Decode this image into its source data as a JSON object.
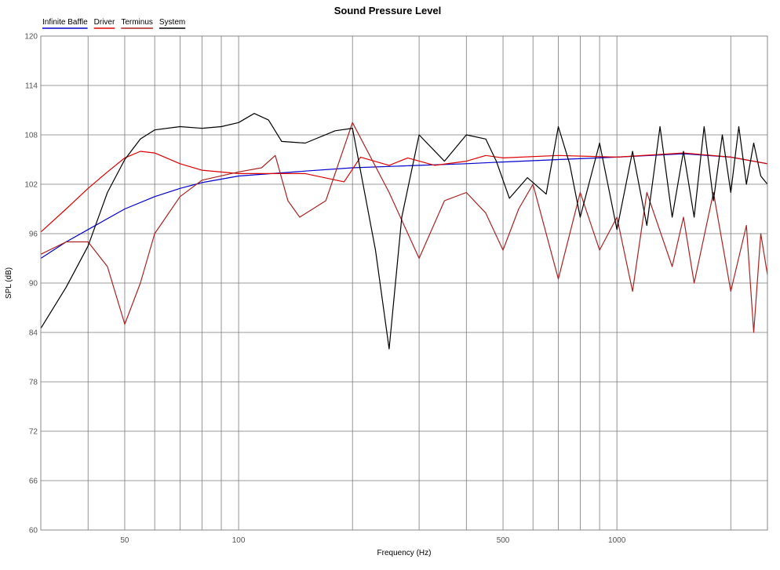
{
  "chart_data": {
    "type": "line",
    "title": "Sound Pressure Level",
    "xlabel": "Frequency (Hz)",
    "ylabel": "SPL (dB)",
    "x_scale": "log",
    "xlim": [
      30,
      2500
    ],
    "ylim": [
      60,
      120
    ],
    "y_ticks": [
      60,
      66,
      72,
      78,
      84,
      90,
      96,
      102,
      108,
      114,
      120
    ],
    "x_ticks_labeled": [
      {
        "value": 50,
        "label": "50"
      },
      {
        "value": 100,
        "label": "100"
      },
      {
        "value": 500,
        "label": "500"
      },
      {
        "value": 1000,
        "label": "1000"
      }
    ],
    "x_gridlines": [
      40,
      50,
      60,
      70,
      80,
      90,
      100,
      200,
      300,
      400,
      500,
      600,
      700,
      800,
      900,
      1000,
      2000
    ],
    "grid": true,
    "legend_position": "top-left",
    "series": [
      {
        "name": "Infinite Baffle",
        "color": "#0000cc",
        "points": [
          [
            30,
            93.0
          ],
          [
            35,
            95.0
          ],
          [
            40,
            96.5
          ],
          [
            50,
            99.0
          ],
          [
            60,
            100.5
          ],
          [
            70,
            101.5
          ],
          [
            80,
            102.2
          ],
          [
            100,
            103.0
          ],
          [
            150,
            103.6
          ],
          [
            200,
            104.0
          ],
          [
            300,
            104.3
          ],
          [
            400,
            104.5
          ],
          [
            500,
            104.7
          ],
          [
            700,
            105.0
          ],
          [
            1000,
            105.3
          ],
          [
            1500,
            105.7
          ],
          [
            2000,
            105.3
          ],
          [
            2500,
            104.5
          ]
        ]
      },
      {
        "name": "Driver",
        "color": "#dd0000",
        "points": [
          [
            30,
            96.2
          ],
          [
            35,
            99.0
          ],
          [
            40,
            101.5
          ],
          [
            45,
            103.5
          ],
          [
            50,
            105.2
          ],
          [
            55,
            106.0
          ],
          [
            60,
            105.8
          ],
          [
            70,
            104.5
          ],
          [
            80,
            103.7
          ],
          [
            100,
            103.3
          ],
          [
            150,
            103.3
          ],
          [
            190,
            102.3
          ],
          [
            210,
            105.3
          ],
          [
            250,
            104.3
          ],
          [
            280,
            105.2
          ],
          [
            330,
            104.3
          ],
          [
            400,
            104.8
          ],
          [
            450,
            105.5
          ],
          [
            500,
            105.2
          ],
          [
            700,
            105.5
          ],
          [
            1000,
            105.3
          ],
          [
            1500,
            105.8
          ],
          [
            2000,
            105.3
          ],
          [
            2500,
            104.5
          ]
        ]
      },
      {
        "name": "Terminus",
        "color": "#aa2222",
        "points": [
          [
            30,
            93.5
          ],
          [
            35,
            95.0
          ],
          [
            40,
            95.0
          ],
          [
            45,
            92.0
          ],
          [
            50,
            85.0
          ],
          [
            55,
            90.0
          ],
          [
            60,
            96.0
          ],
          [
            70,
            100.5
          ],
          [
            80,
            102.5
          ],
          [
            100,
            103.5
          ],
          [
            115,
            104.0
          ],
          [
            125,
            105.5
          ],
          [
            135,
            100.0
          ],
          [
            145,
            98.0
          ],
          [
            170,
            100.0
          ],
          [
            200,
            109.5
          ],
          [
            250,
            101.0
          ],
          [
            300,
            93.0
          ],
          [
            350,
            100.0
          ],
          [
            400,
            101.0
          ],
          [
            450,
            98.5
          ],
          [
            500,
            94.0
          ],
          [
            550,
            99.0
          ],
          [
            600,
            102.0
          ],
          [
            700,
            90.5
          ],
          [
            800,
            101.0
          ],
          [
            900,
            94.0
          ],
          [
            1000,
            98.0
          ],
          [
            1100,
            89.0
          ],
          [
            1200,
            101.0
          ],
          [
            1400,
            92.0
          ],
          [
            1500,
            98.0
          ],
          [
            1600,
            90.0
          ],
          [
            1800,
            101.0
          ],
          [
            2000,
            89.0
          ],
          [
            2200,
            97.0
          ],
          [
            2300,
            84.0
          ],
          [
            2400,
            96.0
          ],
          [
            2500,
            91.0
          ]
        ]
      },
      {
        "name": "System",
        "color": "#000000",
        "points": [
          [
            30,
            84.5
          ],
          [
            35,
            89.5
          ],
          [
            40,
            94.5
          ],
          [
            45,
            101.0
          ],
          [
            50,
            105.0
          ],
          [
            55,
            107.5
          ],
          [
            60,
            108.6
          ],
          [
            70,
            109.0
          ],
          [
            80,
            108.8
          ],
          [
            90,
            109.0
          ],
          [
            100,
            109.5
          ],
          [
            110,
            110.6
          ],
          [
            120,
            109.8
          ],
          [
            130,
            107.2
          ],
          [
            150,
            107.0
          ],
          [
            180,
            108.5
          ],
          [
            200,
            108.8
          ],
          [
            230,
            94.0
          ],
          [
            250,
            82.0
          ],
          [
            270,
            98.0
          ],
          [
            300,
            108.0
          ],
          [
            350,
            104.8
          ],
          [
            400,
            108.0
          ],
          [
            450,
            107.5
          ],
          [
            480,
            104.8
          ],
          [
            520,
            100.3
          ],
          [
            580,
            102.8
          ],
          [
            650,
            100.8
          ],
          [
            700,
            109.0
          ],
          [
            750,
            104.5
          ],
          [
            800,
            98.0
          ],
          [
            900,
            107.0
          ],
          [
            1000,
            96.5
          ],
          [
            1100,
            106.0
          ],
          [
            1200,
            97.0
          ],
          [
            1300,
            109.0
          ],
          [
            1400,
            98.0
          ],
          [
            1500,
            106.0
          ],
          [
            1600,
            98.0
          ],
          [
            1700,
            109.0
          ],
          [
            1800,
            100.0
          ],
          [
            1900,
            108.0
          ],
          [
            2000,
            101.0
          ],
          [
            2100,
            109.0
          ],
          [
            2200,
            102.0
          ],
          [
            2300,
            107.0
          ],
          [
            2400,
            103.0
          ],
          [
            2500,
            102.0
          ]
        ]
      }
    ]
  }
}
